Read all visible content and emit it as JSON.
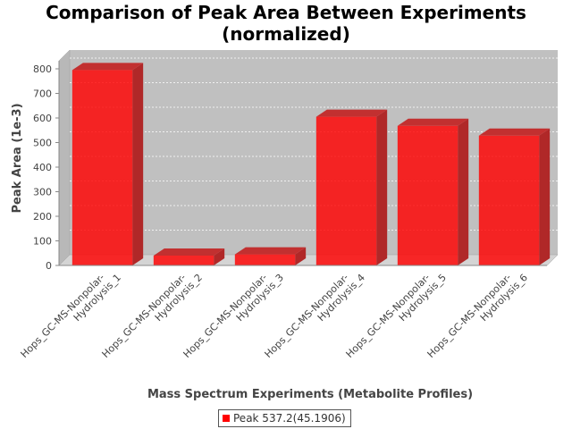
{
  "chart_data": {
    "type": "bar",
    "title": "Comparison of Peak Area Between Experiments (normalized)",
    "title_lines": [
      "Comparison of Peak Area Between Experiments",
      "(normalized)"
    ],
    "xlabel": "Mass Spectrum Experiments (Metabolite Profiles)",
    "ylabel": "Peak Area (1e-3)",
    "categories": [
      "Hops_GC-MS-Nonpolar-Hydrolysis_1",
      "Hops_GC-MS-Nonpolar-Hydrolysis_2",
      "Hops_GC-MS-Nonpolar-Hydrolysis_3",
      "Hops_GC-MS-Nonpolar-Hydrolysis_4",
      "Hops_GC-MS-Nonpolar-Hydrolysis_5",
      "Hops_GC-MS-Nonpolar-Hydrolysis_6"
    ],
    "category_label_lines": [
      [
        "Hops_GC-MS-Nonpolar-",
        "Hydrolysis_1"
      ],
      [
        "Hops_GC-MS-Nonpolar-",
        "Hydrolysis_2"
      ],
      [
        "Hops_GC-MS-Nonpolar-",
        "Hydrolysis_3"
      ],
      [
        "Hops_GC-MS-Nonpolar-",
        "Hydrolysis_4"
      ],
      [
        "Hops_GC-MS-Nonpolar-",
        "Hydrolysis_5"
      ],
      [
        "Hops_GC-MS-Nonpolar-",
        "Hydrolysis_6"
      ]
    ],
    "series": [
      {
        "name": "Peak 537.2(45.1906)",
        "values": [
          795,
          40,
          45,
          605,
          568,
          528
        ],
        "color": "#ff0000"
      }
    ],
    "ylim": [
      0,
      840
    ],
    "yticks": [
      0,
      100,
      200,
      300,
      400,
      500,
      600,
      700,
      800
    ],
    "grid": true,
    "legend_position": "bottom",
    "plot_background": "#c0c0c0"
  }
}
